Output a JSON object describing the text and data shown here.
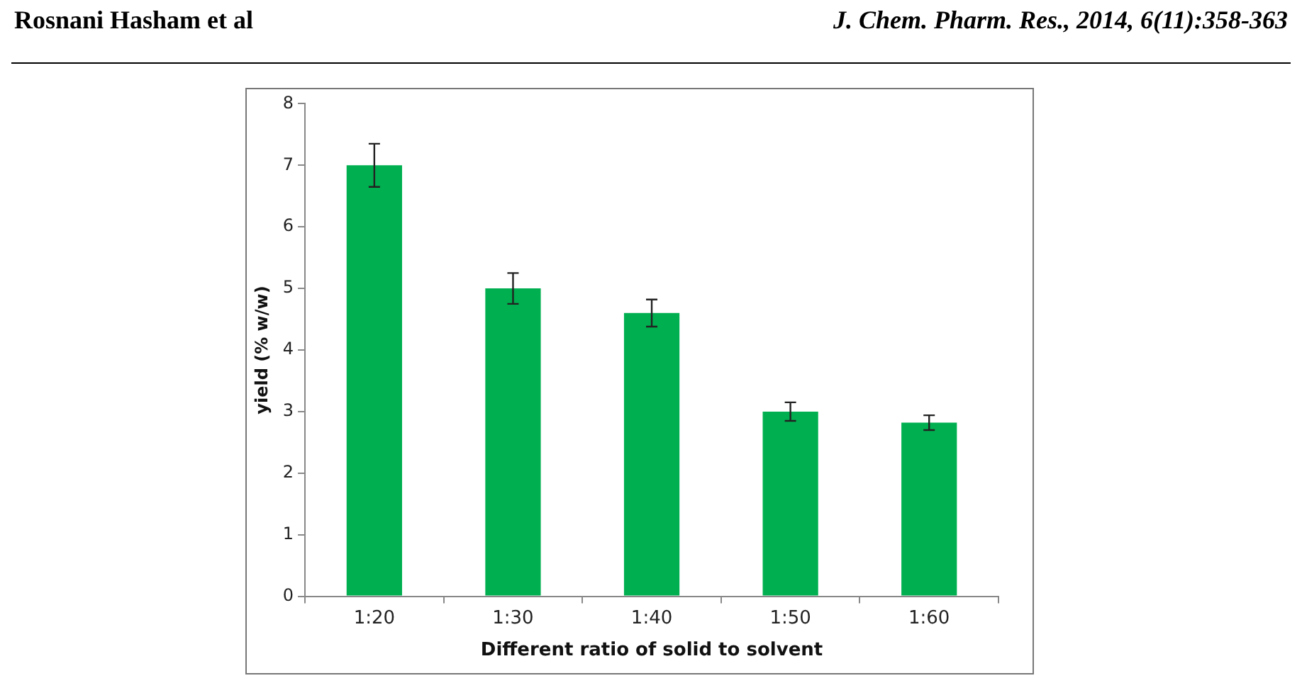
{
  "chart_data": {
    "type": "bar",
    "xlabel": "Different ratio of solid to solvent",
    "ylabel": "yield (% w/w)",
    "categories": [
      "1:20",
      "1:30",
      "1:40",
      "1:50",
      "1:60"
    ],
    "values": [
      7.0,
      5.0,
      4.6,
      3.0,
      2.82
    ],
    "errors": [
      0.35,
      0.25,
      0.22,
      0.15,
      0.12
    ],
    "color": "#00b050",
    "ylim": [
      0,
      8
    ],
    "yticks": [
      0,
      1,
      2,
      3,
      4,
      5,
      6,
      7,
      8
    ],
    "grid": false,
    "legend": false,
    "annotations": [
      "Rosnani Hasham et al",
      "J. Chem. Pharm. Res., 2014, 6(11):358-363"
    ]
  }
}
